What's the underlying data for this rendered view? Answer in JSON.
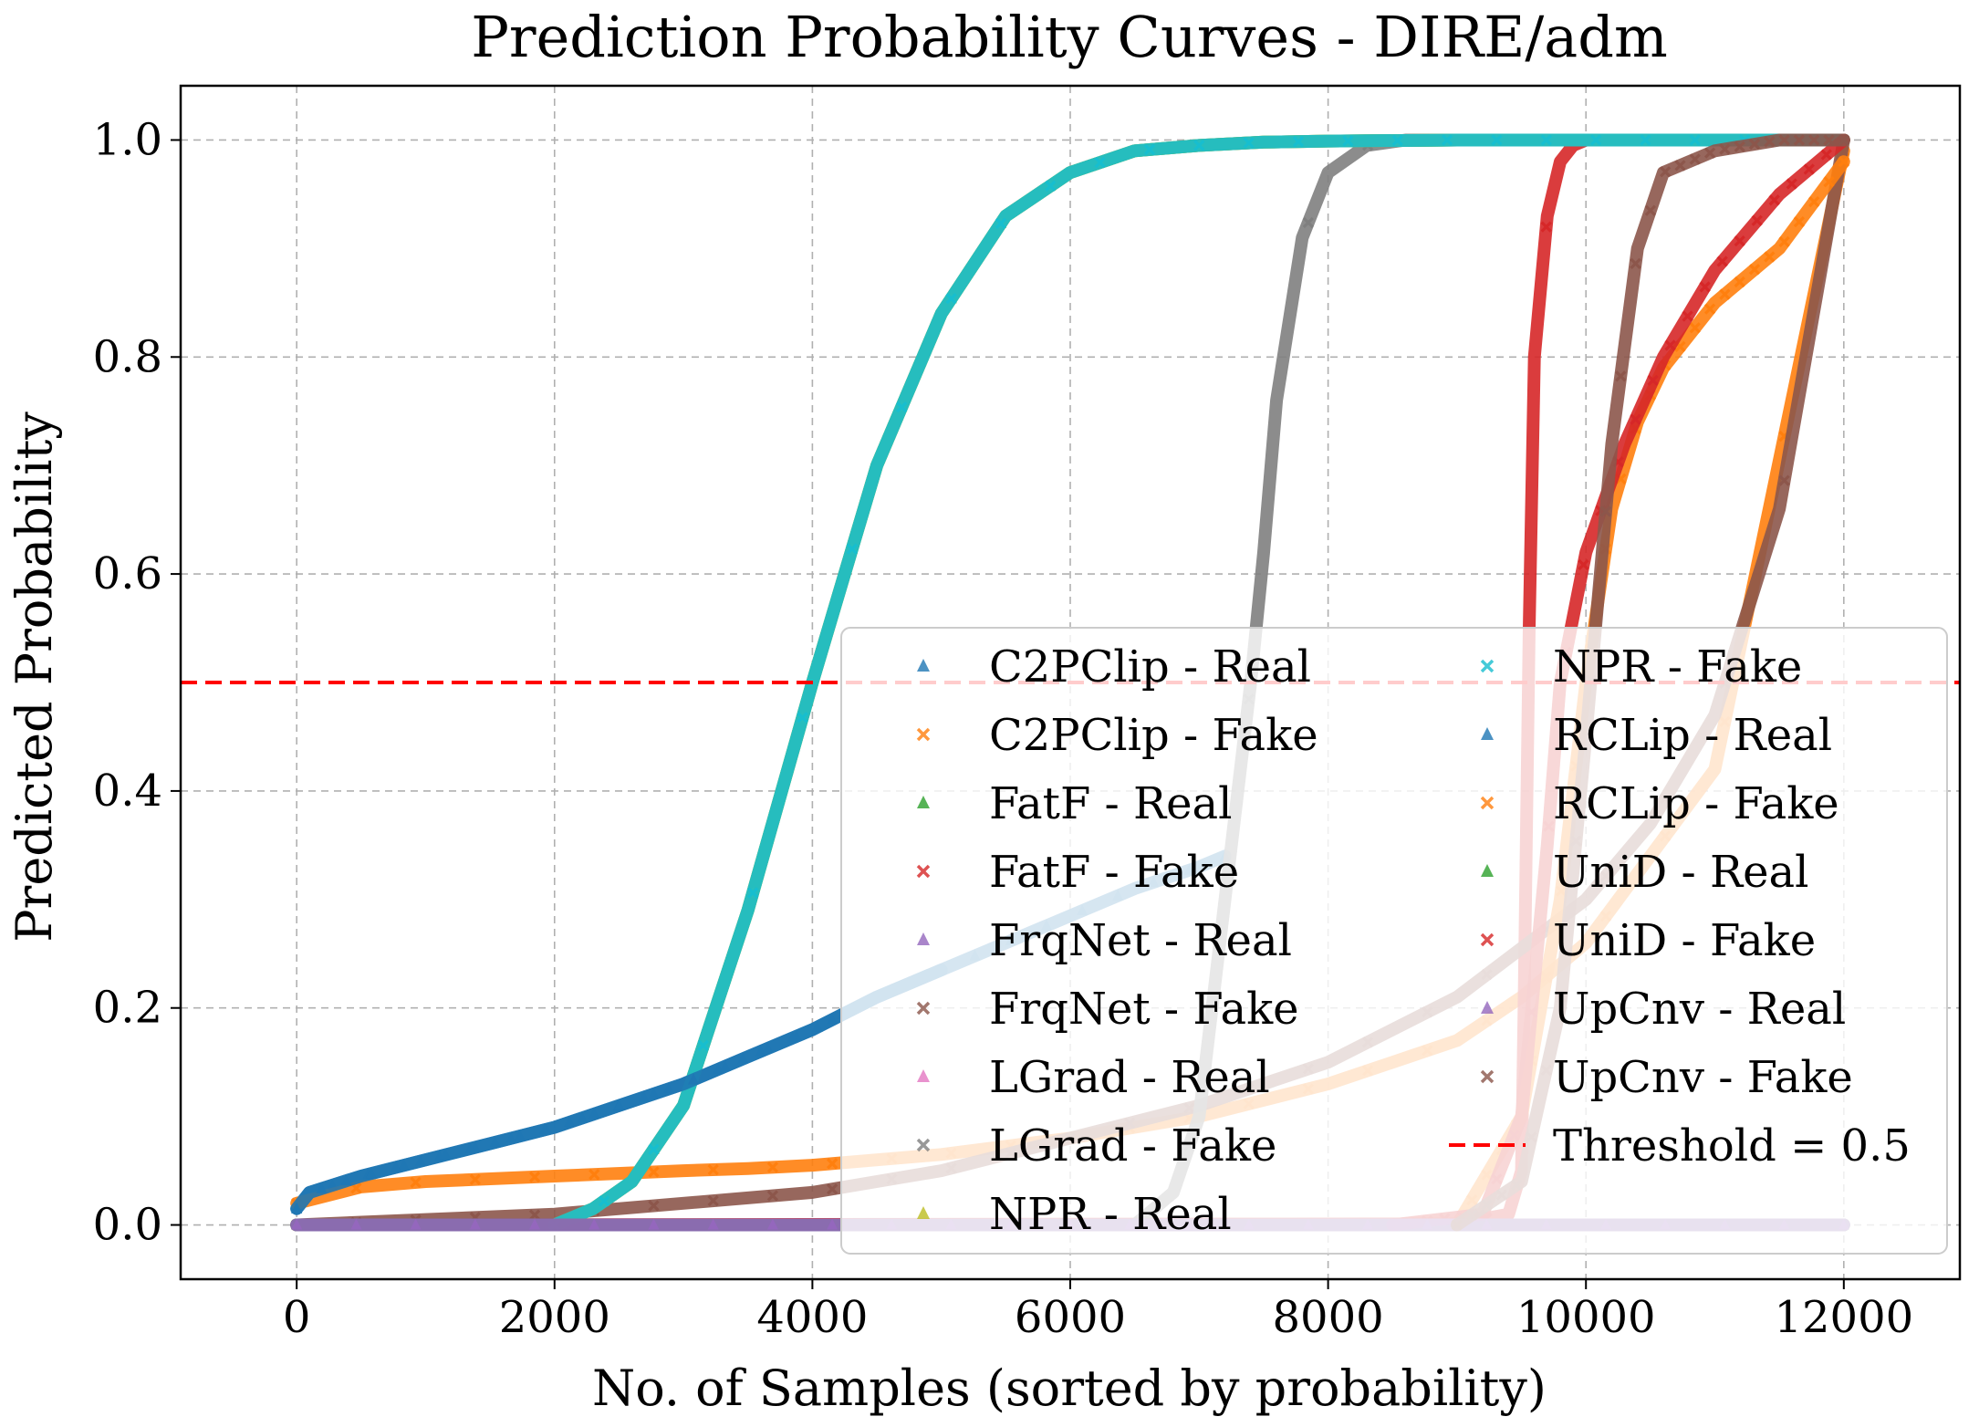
{
  "chart_data": {
    "type": "scatter",
    "title": "Prediction Probability Curves - DIRE/adm",
    "xlabel": "No. of Samples (sorted by probability)",
    "ylabel": "Predicted Probability",
    "xlim": [
      -900,
      12900
    ],
    "ylim": [
      -0.05,
      1.05
    ],
    "xticks": [
      0,
      2000,
      4000,
      6000,
      8000,
      10000,
      12000
    ],
    "xtick_labels": [
      "0",
      "2000",
      "4000",
      "6000",
      "8000",
      "10000",
      "12000"
    ],
    "yticks": [
      0.0,
      0.2,
      0.4,
      0.6,
      0.8,
      1.0
    ],
    "ytick_labels": [
      "0.0",
      "0.2",
      "0.4",
      "0.6",
      "0.8",
      "1.0"
    ],
    "grid": true,
    "legend_position": "lower-right",
    "legend_columns": 2,
    "threshold": {
      "value": 0.5,
      "label": "Threshold = 0.5",
      "color": "#ff0000"
    },
    "series": [
      {
        "name": "C2PClip - Real",
        "marker": "triangle",
        "color": "#1f77b4",
        "x": [
          0,
          100,
          500,
          1000,
          1500,
          2000,
          2500,
          3000,
          3500,
          4000,
          4500,
          5000,
          5500,
          6000,
          6500,
          7000,
          7200
        ],
        "y": [
          0.015,
          0.03,
          0.045,
          0.06,
          0.075,
          0.09,
          0.11,
          0.13,
          0.155,
          0.18,
          0.21,
          0.235,
          0.26,
          0.285,
          0.31,
          0.33,
          0.34
        ]
      },
      {
        "name": "C2PClip - Fake",
        "marker": "x",
        "color": "#ff7f0e",
        "x": [
          0,
          500,
          1000,
          2000,
          3000,
          3500,
          4000,
          5000,
          6000,
          7000,
          8000,
          8500,
          9000,
          9500,
          10000,
          11000,
          12000
        ],
        "y": [
          0.02,
          0.035,
          0.04,
          0.045,
          0.05,
          0.052,
          0.055,
          0.065,
          0.08,
          0.1,
          0.13,
          0.15,
          0.17,
          0.21,
          0.26,
          0.42,
          0.99
        ]
      },
      {
        "name": "FatF - Real",
        "marker": "triangle",
        "color": "#2ca02c",
        "x": [
          2000,
          2300,
          2600,
          3000,
          3500,
          4000,
          4500,
          5000,
          5500,
          6000,
          6500,
          7000,
          7500,
          8000,
          9000,
          12000
        ],
        "y": [
          0.0,
          0.015,
          0.04,
          0.11,
          0.29,
          0.5,
          0.7,
          0.84,
          0.93,
          0.97,
          0.99,
          0.995,
          0.998,
          0.999,
          1.0,
          1.0
        ]
      },
      {
        "name": "FatF - Fake",
        "marker": "x",
        "color": "#d62728",
        "x": [
          0,
          9000,
          9400,
          9500,
          9520,
          9560,
          9600,
          9700,
          9800,
          9900,
          10000,
          12000
        ],
        "y": [
          0.0,
          0.001,
          0.01,
          0.05,
          0.2,
          0.55,
          0.8,
          0.93,
          0.98,
          0.995,
          1.0,
          1.0
        ]
      },
      {
        "name": "FrqNet - Real",
        "marker": "triangle",
        "color": "#9467bd",
        "x": [
          0,
          12000
        ],
        "y": [
          0.0,
          0.0
        ]
      },
      {
        "name": "FrqNet - Fake",
        "marker": "x",
        "color": "#8c564b",
        "x": [
          0,
          2000,
          4000,
          5000,
          6000,
          7000,
          8000,
          9000,
          10000,
          10500,
          11000,
          11500,
          12000
        ],
        "y": [
          0.0,
          0.01,
          0.03,
          0.05,
          0.08,
          0.11,
          0.15,
          0.21,
          0.3,
          0.37,
          0.47,
          0.66,
          1.0
        ]
      },
      {
        "name": "LGrad - Real",
        "marker": "triangle",
        "color": "#e377c2",
        "x": [
          0,
          12000
        ],
        "y": [
          0.0,
          0.0
        ]
      },
      {
        "name": "LGrad - Fake",
        "marker": "x",
        "color": "#7f7f7f",
        "x": [
          0,
          6500,
          6800,
          7000,
          7200,
          7400,
          7500,
          7600,
          7800,
          8000,
          8300,
          8600,
          9000,
          12000
        ],
        "y": [
          0.0,
          0.0,
          0.03,
          0.1,
          0.3,
          0.5,
          0.62,
          0.76,
          0.91,
          0.97,
          0.995,
          1.0,
          1.0,
          1.0
        ]
      },
      {
        "name": "NPR - Real",
        "marker": "triangle",
        "color": "#bcbd22",
        "x": [
          2000,
          2300,
          2600,
          3000,
          3500,
          4000,
          4500,
          5000,
          5500,
          6000,
          6500,
          7000,
          7500,
          8000,
          9000,
          12000
        ],
        "y": [
          0.0,
          0.015,
          0.04,
          0.11,
          0.29,
          0.5,
          0.7,
          0.84,
          0.93,
          0.97,
          0.99,
          0.995,
          0.998,
          0.999,
          1.0,
          1.0
        ]
      },
      {
        "name": "NPR - Fake",
        "marker": "x",
        "color": "#17becf",
        "x": [
          2000,
          2300,
          2600,
          3000,
          3500,
          4000,
          4500,
          5000,
          5500,
          6000,
          6500,
          7000,
          7500,
          8000,
          9000,
          12000
        ],
        "y": [
          0.0,
          0.015,
          0.04,
          0.11,
          0.29,
          0.5,
          0.7,
          0.84,
          0.93,
          0.97,
          0.99,
          0.995,
          0.998,
          0.999,
          1.0,
          1.0
        ]
      },
      {
        "name": "RCLip - Real",
        "marker": "triangle",
        "color": "#1f77b4",
        "x": [
          0,
          100,
          500,
          1000,
          1500,
          2000,
          2500,
          3000,
          3500,
          4000,
          4500,
          5000
        ],
        "y": [
          0.015,
          0.03,
          0.045,
          0.06,
          0.075,
          0.09,
          0.11,
          0.13,
          0.155,
          0.18,
          0.21,
          0.235
        ]
      },
      {
        "name": "RCLip - Fake",
        "marker": "x",
        "color": "#ff7f0e",
        "x": [
          9000,
          9500,
          9800,
          10000,
          10200,
          10400,
          10600,
          11000,
          11500,
          12000
        ],
        "y": [
          0.0,
          0.1,
          0.3,
          0.5,
          0.66,
          0.74,
          0.79,
          0.85,
          0.9,
          0.98
        ]
      },
      {
        "name": "UniD - Real",
        "marker": "triangle",
        "color": "#2ca02c",
        "x": [
          0,
          12000
        ],
        "y": [
          0.0,
          0.0
        ]
      },
      {
        "name": "UniD - Fake",
        "marker": "x",
        "color": "#d62728",
        "x": [
          8500,
          9200,
          9500,
          9700,
          9800,
          10000,
          10300,
          10600,
          11000,
          11500,
          12000
        ],
        "y": [
          0.0,
          0.01,
          0.1,
          0.35,
          0.5,
          0.62,
          0.72,
          0.8,
          0.88,
          0.95,
          1.0
        ]
      },
      {
        "name": "UpCnv - Real",
        "marker": "triangle",
        "color": "#9467bd",
        "x": [
          0,
          12000
        ],
        "y": [
          0.0,
          0.0
        ]
      },
      {
        "name": "UpCnv - Fake",
        "marker": "x",
        "color": "#8c564b",
        "x": [
          9000,
          9500,
          9800,
          10000,
          10200,
          10400,
          10600,
          11000,
          11500,
          12000
        ],
        "y": [
          0.0,
          0.04,
          0.2,
          0.45,
          0.72,
          0.9,
          0.97,
          0.99,
          1.0,
          1.0
        ]
      }
    ]
  }
}
